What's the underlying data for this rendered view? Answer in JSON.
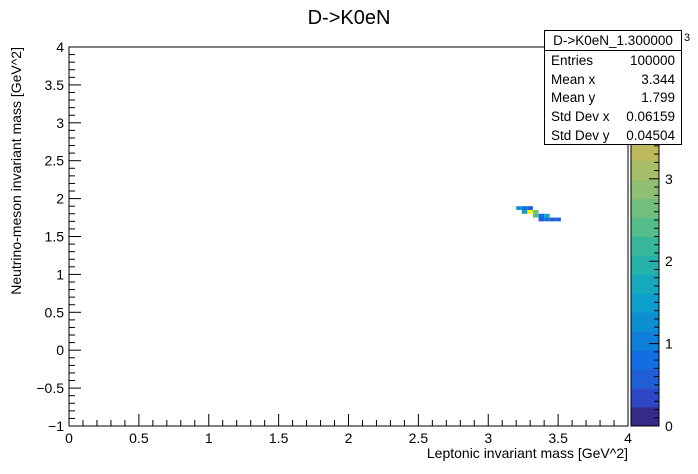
{
  "chart_data": {
    "type": "heatmap",
    "title": "D->K0eN",
    "xlabel": "Leptonic invariant mass [GeV^2]",
    "ylabel": "Neutrino-meson invariant mass [GeV^2]",
    "xlim": [
      0,
      4
    ],
    "ylim": [
      -1,
      4
    ],
    "x_ticks": [
      "0",
      "0.5",
      "1",
      "1.5",
      "2",
      "2.5",
      "3",
      "3.5",
      "4"
    ],
    "y_ticks": [
      "−1",
      "−0.5",
      "0",
      "0.5",
      "1",
      "1.5",
      "2",
      "2.5",
      "3",
      "3.5",
      "4"
    ],
    "z_ticks": [
      "0",
      "1",
      "2",
      "3",
      "4"
    ],
    "z_max": 4.6,
    "z_exponent_label": "3",
    "bin_width": 0.04,
    "bin_height": 0.05,
    "cells": [
      {
        "x": 3.22,
        "y": 1.875,
        "z": 1.2
      },
      {
        "x": 3.26,
        "y": 1.875,
        "z": 0.8
      },
      {
        "x": 3.3,
        "y": 1.875,
        "z": 0.6
      },
      {
        "x": 3.26,
        "y": 1.825,
        "z": 1.6
      },
      {
        "x": 3.3,
        "y": 1.825,
        "z": 4.4
      },
      {
        "x": 3.34,
        "y": 1.825,
        "z": 2.6
      },
      {
        "x": 3.34,
        "y": 1.775,
        "z": 2.5
      },
      {
        "x": 3.38,
        "y": 1.775,
        "z": 0.9
      },
      {
        "x": 3.42,
        "y": 1.775,
        "z": 1.7
      },
      {
        "x": 3.38,
        "y": 1.725,
        "z": 0.6
      },
      {
        "x": 3.42,
        "y": 1.725,
        "z": 0.7
      },
      {
        "x": 3.46,
        "y": 1.725,
        "z": 0.5
      },
      {
        "x": 3.5,
        "y": 1.725,
        "z": 0.6
      }
    ],
    "palette": [
      "#352a87",
      "#2d47c6",
      "#1e5fd7",
      "#136ee3",
      "#0f7fdc",
      "#0d90d3",
      "#0c9fcb",
      "#16a9bd",
      "#26b1ab",
      "#38b89a",
      "#55bd8a",
      "#72bf7d",
      "#8ebf72",
      "#a7bd67",
      "#bdba5e",
      "#d2b755",
      "#e4b64a",
      "#f2bf3d",
      "#f9d530",
      "#f9fb0e"
    ],
    "stats": {
      "title": "D->K0eN_1.300000",
      "rows": [
        {
          "label": "Entries",
          "value": "100000"
        },
        {
          "label": "Mean x",
          "value": "3.344"
        },
        {
          "label": "Mean y",
          "value": "1.799"
        },
        {
          "label": "Std Dev x",
          "value": "0.06159"
        },
        {
          "label": "Std Dev y",
          "value": "0.04504"
        }
      ]
    }
  }
}
